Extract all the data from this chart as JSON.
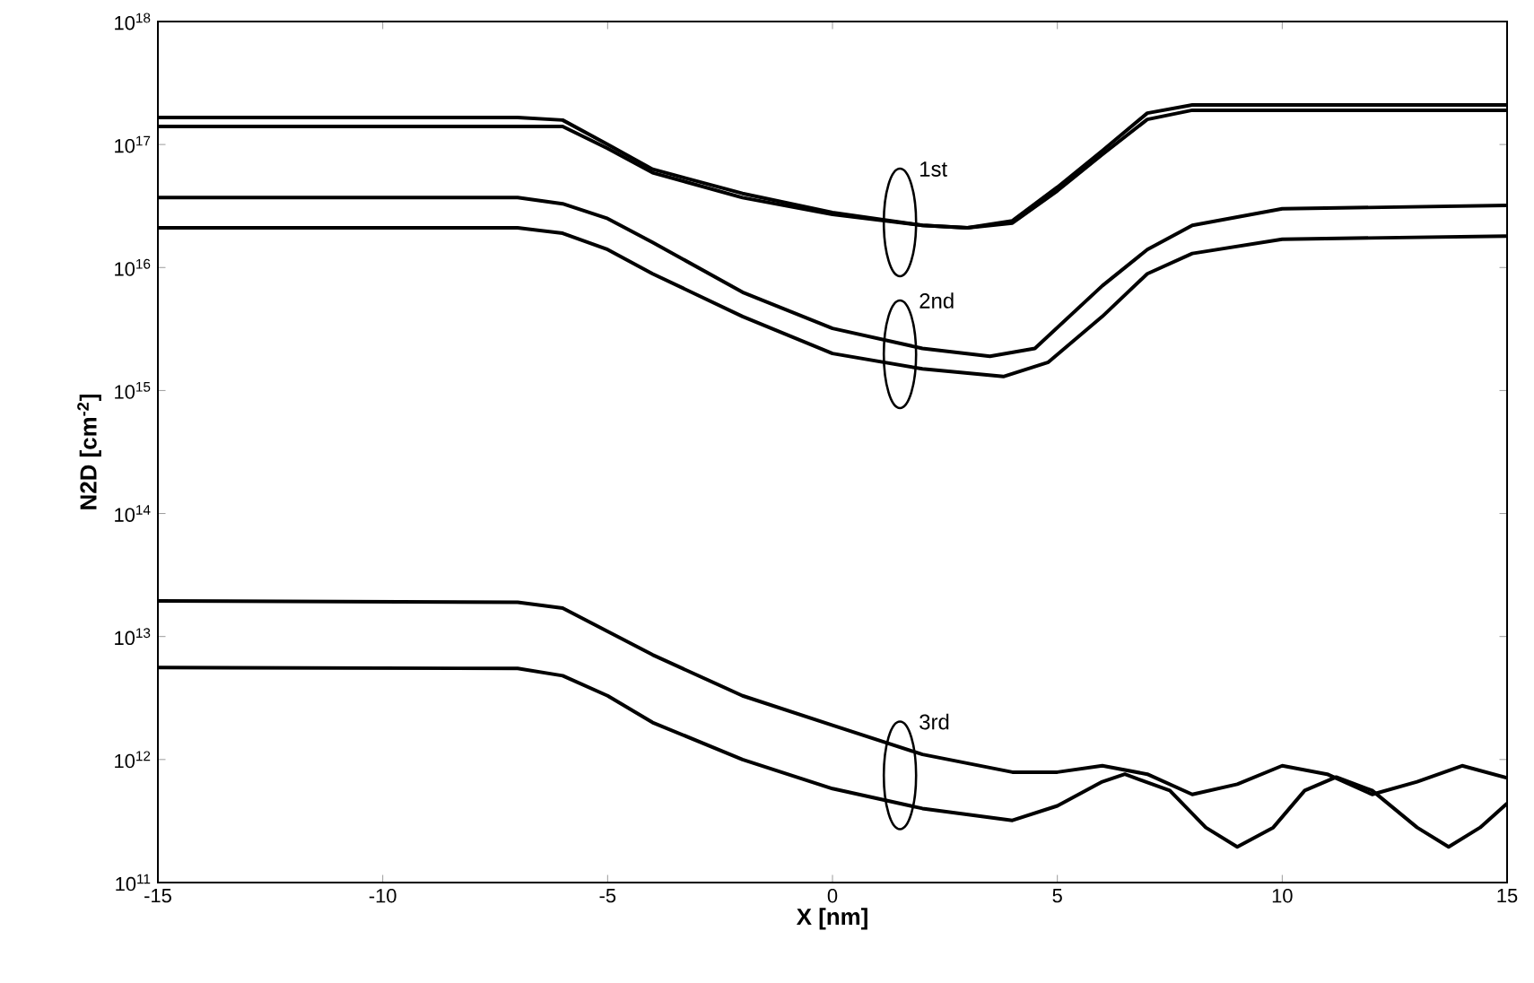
{
  "chart_data": {
    "type": "line",
    "xlabel": "X [nm]",
    "ylabel": "N2D [cm$^{-2}$]",
    "log": "y",
    "xlim": [
      -15,
      15
    ],
    "xticks": [
      -15,
      -10,
      -5,
      0,
      5,
      10,
      15
    ],
    "ylim": [
      100000000000.0,
      1e+18
    ],
    "yticks": [
      {
        "value": 100000000000.0,
        "label": "10$^{11}$"
      },
      {
        "value": 1000000000000.0,
        "label": "10$^{12}$"
      },
      {
        "value": 10000000000000.0,
        "label": "10$^{13}$"
      },
      {
        "value": 100000000000000.0,
        "label": "10$^{14}$"
      },
      {
        "value": 1000000000000000.0,
        "label": "10$^{15}$"
      },
      {
        "value": 1e+16,
        "label": "10$^{16}$"
      },
      {
        "value": 1e+17,
        "label": "10$^{17}$"
      },
      {
        "value": 1e+18,
        "label": "10$^{18}$"
      }
    ],
    "series": [
      {
        "color": "#000000",
        "x": [
          -15,
          -7,
          -6,
          -5,
          -4,
          -2,
          0,
          2,
          3,
          4,
          5,
          6,
          7,
          8,
          15
        ],
        "values": [
          1.66e+17,
          1.66e+17,
          1.58e+17,
          1e+17,
          6.3e+16,
          4e+16,
          2.8e+16,
          2.2e+16,
          2.1e+16,
          2.4e+16,
          4.5e+16,
          8.9e+16,
          1.8e+17,
          2.1e+17,
          2.1e+17
        ]
      },
      {
        "color": "#000000",
        "x": [
          -15,
          -6,
          -5,
          -4,
          -2,
          0,
          2,
          3,
          4,
          5,
          6,
          7,
          8,
          15
        ],
        "values": [
          1.4e+17,
          1.4e+17,
          9.3e+16,
          5.9e+16,
          3.7e+16,
          2.7e+16,
          2.2e+16,
          2.1e+16,
          2.3e+16,
          4.2e+16,
          8.3e+16,
          1.6e+17,
          1.9e+17,
          1.9e+17
        ]
      },
      {
        "color": "#000000",
        "x": [
          -15,
          -7,
          -6,
          -5,
          -4,
          -2,
          0,
          2,
          3.5,
          4.5,
          6,
          7,
          8,
          10,
          15
        ],
        "values": [
          3.7e+16,
          3.7e+16,
          3.3e+16,
          2.5e+16,
          1.6e+16,
          6300000000000000.0,
          3200000000000000.0,
          2200000000000000.0,
          1900000000000000.0,
          2200000000000000.0,
          7100000000000000.0,
          1.4e+16,
          2.2e+16,
          3e+16,
          3.2e+16
        ]
      },
      {
        "color": "#000000",
        "x": [
          -15,
          -7,
          -6,
          -5,
          -4,
          -2,
          0,
          2,
          3.8,
          4.8,
          6,
          7,
          8,
          10,
          15
        ],
        "values": [
          2.1e+16,
          2.1e+16,
          1.9e+16,
          1.4e+16,
          8900000000000000.0,
          4000000000000000.0,
          2000000000000000.0,
          1500000000000000.0,
          1300000000000000.0,
          1700000000000000.0,
          4000000000000000.0,
          8900000000000000.0,
          1.3e+16,
          1.7e+16,
          1.8e+16
        ]
      },
      {
        "color": "#000000",
        "x": [
          -15,
          -7,
          -6,
          -5,
          -4,
          -2,
          0,
          2,
          4,
          5,
          6,
          7,
          8,
          9,
          10,
          11,
          12,
          13,
          14,
          15
        ],
        "values": [
          19500000000000.0,
          19000000000000.0,
          17000000000000.0,
          11000000000000.0,
          7100000000000.0,
          3300000000000.0,
          1900000000000.0,
          1100000000000.0,
          790000000000.0,
          790000000000.0,
          890000000000.0,
          760000000000.0,
          520000000000.0,
          630000000000.0,
          890000000000.0,
          760000000000.0,
          520000000000.0,
          660000000000.0,
          890000000000.0,
          710000000000.0
        ]
      },
      {
        "color": "#000000",
        "x": [
          -15,
          -7,
          -6,
          -5,
          -4,
          -2,
          0,
          2,
          4,
          5,
          6,
          6.5,
          7.5,
          8.3,
          9,
          9.8,
          10.5,
          11.2,
          12,
          13,
          13.7,
          14.4,
          15
        ],
        "values": [
          5600000000000.0,
          5500000000000.0,
          4800000000000.0,
          3300000000000.0,
          2000000000000.0,
          1000000000000.0,
          580000000000.0,
          400000000000.0,
          320000000000.0,
          420000000000.0,
          660000000000.0,
          760000000000.0,
          560000000000.0,
          280000000000.0,
          195000000000.0,
          280000000000.0,
          560000000000.0,
          720000000000.0,
          560000000000.0,
          280000000000.0,
          195000000000.0,
          280000000000.0,
          440000000000.0
        ]
      }
    ],
    "annotations": [
      "1st",
      "2nd",
      "3rd"
    ]
  }
}
